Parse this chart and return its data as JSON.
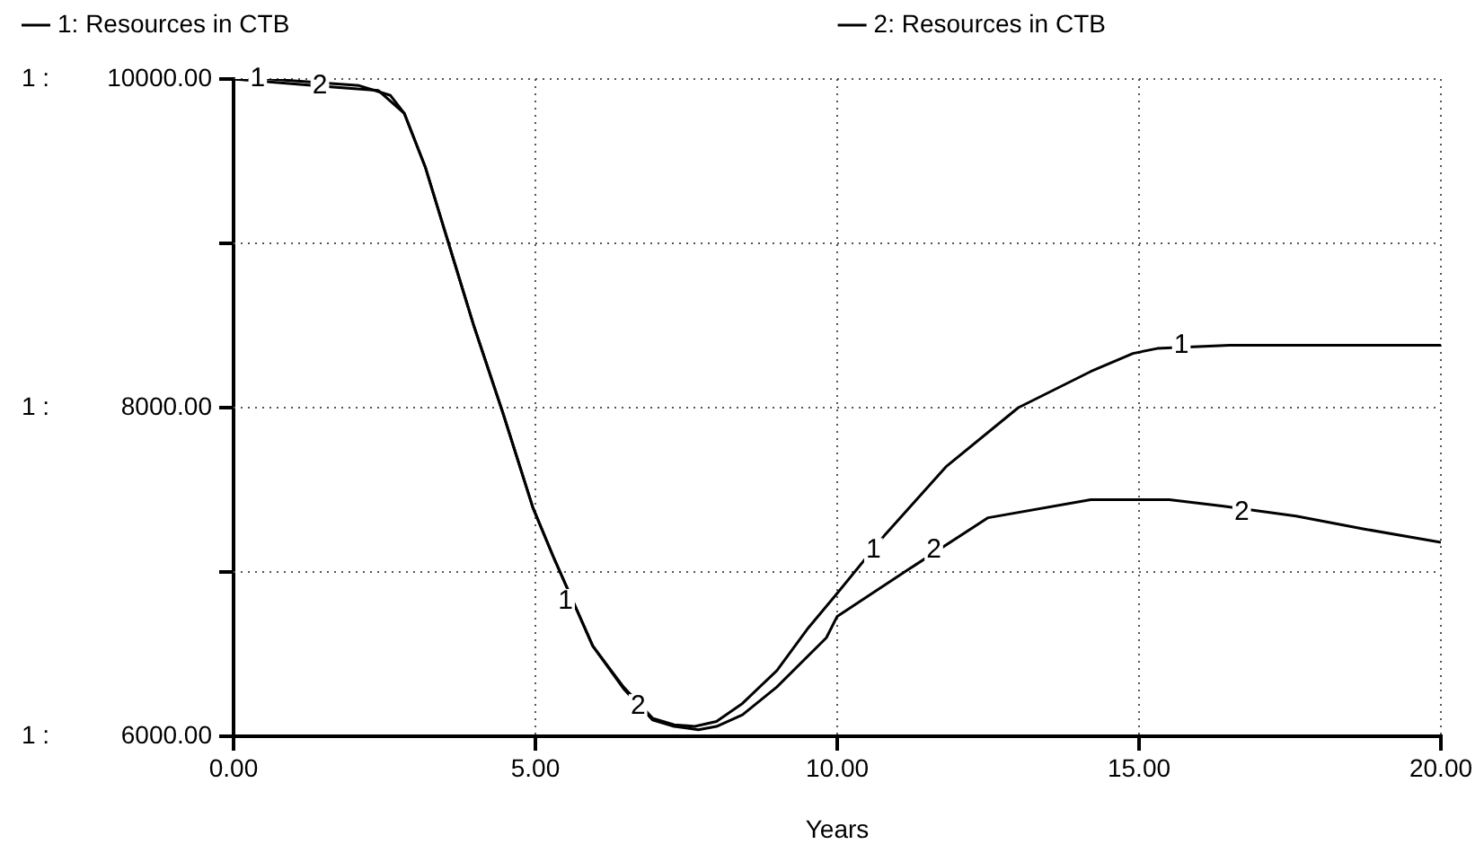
{
  "chart_data": {
    "type": "line",
    "xlabel": "Years",
    "xlim": [
      0,
      20
    ],
    "xticks": [
      {
        "value": 0,
        "label": "0.00"
      },
      {
        "value": 5,
        "label": "5.00"
      },
      {
        "value": 10,
        "label": "10.00"
      },
      {
        "value": 15,
        "label": "15.00"
      },
      {
        "value": 20,
        "label": "20.00"
      }
    ],
    "ylim": [
      6000,
      10000
    ],
    "yticks": [
      {
        "value": 6000,
        "label": "6000.00"
      },
      {
        "value": 7000,
        "label": null
      },
      {
        "value": 8000,
        "label": "8000.00"
      },
      {
        "value": 9000,
        "label": null
      },
      {
        "value": 10000,
        "label": "10000.00"
      }
    ],
    "grid": true,
    "legend": "top",
    "line_style": "solid",
    "marker": "none",
    "series": [
      {
        "name": "1: Resources in CTB",
        "color": "#000000",
        "x": [
          0,
          0.6,
          2.08,
          2.6,
          2.83,
          3.18,
          3.67,
          3.97,
          4.46,
          4.96,
          5.3,
          5.95,
          6.46,
          6.94,
          7.3,
          7.64,
          8.0,
          8.43,
          9.0,
          9.5,
          10.0,
          10.8,
          11.8,
          13.0,
          14.2,
          14.9,
          15.3,
          16.5,
          20
        ],
        "values": [
          10000,
          10000,
          9960,
          9900,
          9790,
          9460,
          8870,
          8510,
          7970,
          7390,
          7090,
          6550,
          6300,
          6110,
          6070,
          6060,
          6090,
          6200,
          6400,
          6650,
          6870,
          7230,
          7640,
          8000,
          8220,
          8330,
          8360,
          8380,
          8380
        ]
      },
      {
        "name": "2: Resources in CTB",
        "color": "#000000",
        "x": [
          0,
          1.7,
          2.4,
          2.83,
          3.18,
          3.67,
          3.97,
          4.46,
          4.96,
          5.3,
          5.95,
          6.46,
          6.94,
          7.3,
          7.7,
          8.0,
          8.43,
          9.0,
          9.82,
          10.0,
          11.2,
          12.5,
          14.2,
          15.5,
          16.4,
          17.6,
          18.75,
          20
        ],
        "values": [
          10000,
          9950,
          9930,
          9790,
          9460,
          8870,
          8510,
          7970,
          7390,
          7090,
          6550,
          6290,
          6100,
          6060,
          6040,
          6060,
          6130,
          6300,
          6600,
          6730,
          7020,
          7330,
          7440,
          7440,
          7400,
          7340,
          7260,
          7180
        ]
      }
    ],
    "annotations": [
      "1 :",
      "1 :",
      "1 :",
      {
        "text": "1",
        "x": 0.4,
        "y": 10000
      },
      {
        "text": "2",
        "x": 1.43,
        "y": 9960
      },
      {
        "text": "1",
        "x": 5.5,
        "y": 6820
      },
      {
        "text": "2",
        "x": 6.7,
        "y": 6180
      },
      {
        "text": "1",
        "x": 10.6,
        "y": 7130
      },
      {
        "text": "2",
        "x": 11.6,
        "y": 7130
      },
      {
        "text": "1",
        "x": 15.7,
        "y": 8380
      },
      {
        "text": "2",
        "x": 16.7,
        "y": 7360
      }
    ]
  }
}
